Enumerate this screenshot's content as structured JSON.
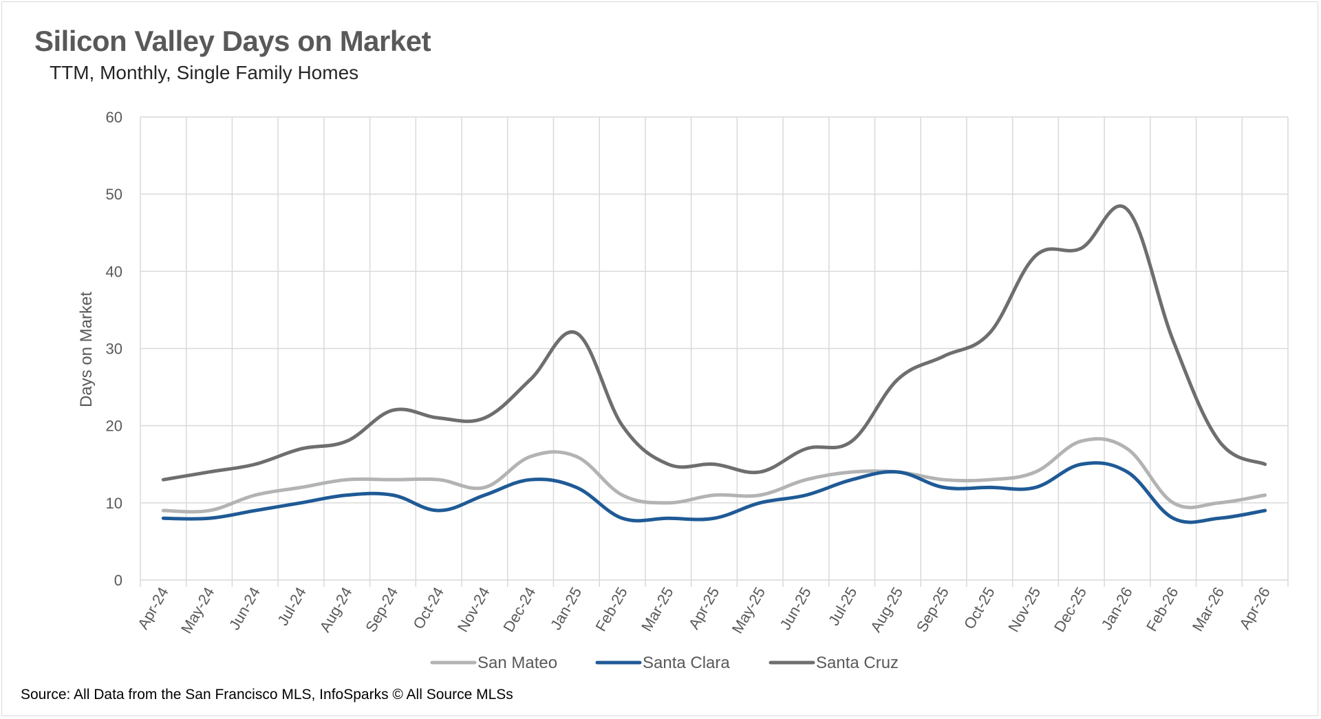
{
  "title": "Silicon Valley Days on Market",
  "subtitle": "TTM, Monthly, Single Family Homes",
  "source": "Source: All Data from the San Francisco MLS, InfoSparks © All Source MLSs",
  "colors": {
    "san_mateo": "#b3b3b3",
    "santa_clara": "#1f5a96",
    "santa_cruz": "#6e6e6e",
    "grid": "#d9d9d9",
    "tick_text": "#595959"
  },
  "chart_data": {
    "type": "line",
    "title": "Silicon Valley Days on Market",
    "subtitle": "TTM, Monthly, Single Family Homes",
    "xlabel": "",
    "ylabel": "Days on Market",
    "ylim": [
      0,
      60
    ],
    "yticks": [
      "0",
      "10",
      "20",
      "30",
      "40",
      "50",
      "60"
    ],
    "grid": true,
    "legend": "bottom",
    "categories": [
      "Apr-24",
      "May-24",
      "Jun-24",
      "Jul-24",
      "Aug-24",
      "Sep-24",
      "Oct-24",
      "Nov-24",
      "Dec-24",
      "Jan-25",
      "Feb-25",
      "Mar-25",
      "Apr-25",
      "May-25",
      "Jun-25",
      "Jul-25",
      "Aug-25",
      "Sep-25",
      "Oct-25",
      "Nov-25",
      "Dec-25",
      "Jan-26",
      "Feb-26",
      "Mar-26",
      "Apr-26"
    ],
    "series": [
      {
        "name": "San Mateo",
        "color": "#b3b3b3",
        "values": [
          9,
          9,
          11,
          12,
          13,
          13,
          13,
          12,
          16,
          16,
          11,
          10,
          11,
          11,
          13,
          14,
          14,
          13,
          13,
          14,
          18,
          17,
          10,
          10,
          11
        ]
      },
      {
        "name": "Santa Clara",
        "color": "#1f5a96",
        "values": [
          8,
          8,
          9,
          10,
          11,
          11,
          9,
          11,
          13,
          12,
          8,
          8,
          8,
          10,
          11,
          13,
          14,
          12,
          12,
          12,
          15,
          14,
          8,
          8,
          9
        ]
      },
      {
        "name": "Santa Cruz",
        "color": "#6e6e6e",
        "values": [
          13,
          14,
          15,
          17,
          18,
          22,
          21,
          21,
          26,
          32,
          20,
          15,
          15,
          14,
          17,
          18,
          26,
          29,
          32,
          42,
          43,
          48,
          31,
          18,
          15
        ]
      }
    ]
  }
}
